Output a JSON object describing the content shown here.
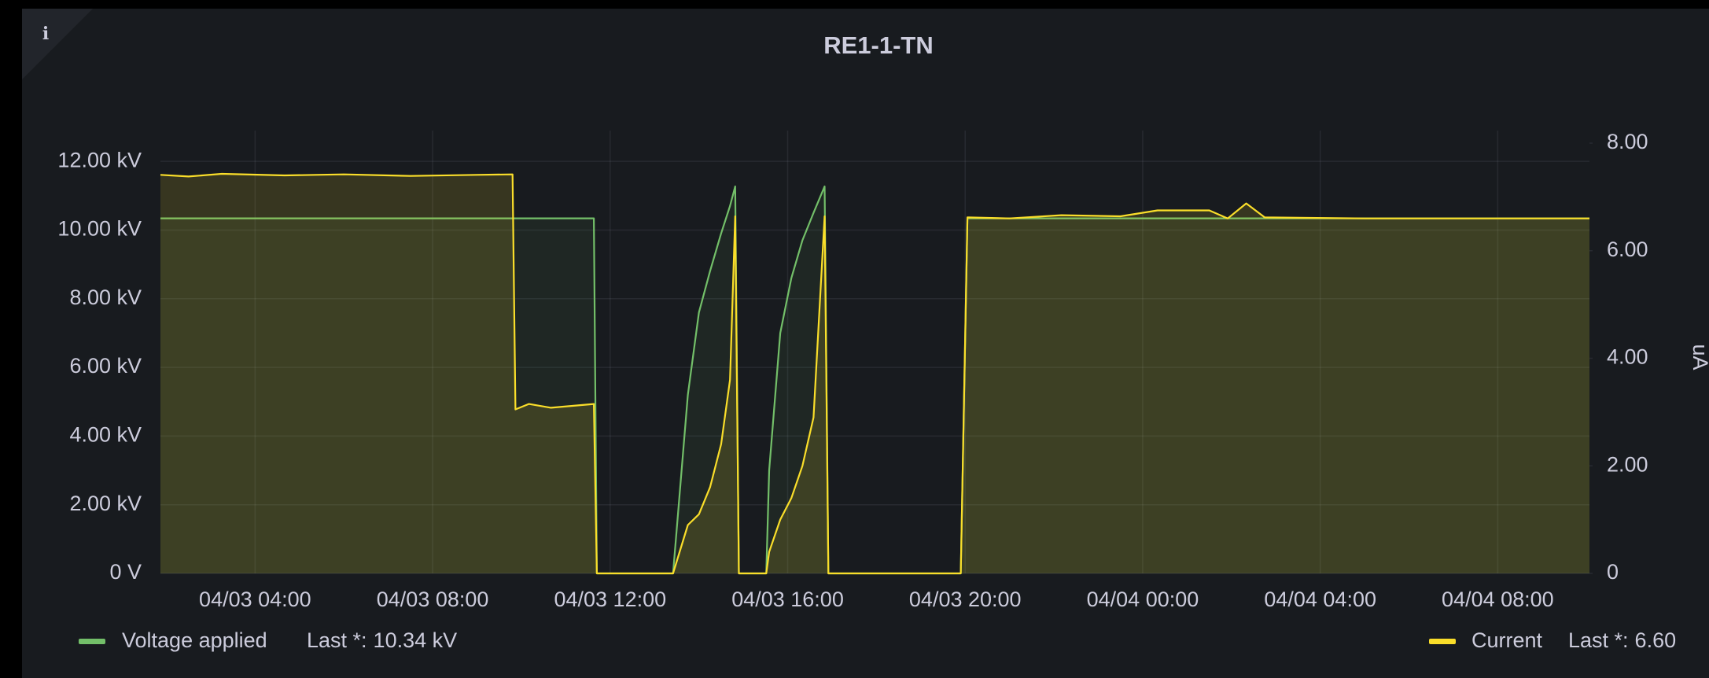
{
  "chart_data": {
    "type": "line",
    "title": "RE1-1-TN",
    "info_icon": "i",
    "x": [
      "04/03 01:52",
      "04/03 02:30",
      "04/03 03:15",
      "04/03 04:40",
      "04/03 06:00",
      "04/03 07:30",
      "04/03 09:00",
      "04/03 09:48",
      "04/03 09:52",
      "04/03 10:10",
      "04/03 10:40",
      "04/03 11:38",
      "04/03 11:42",
      "04/03 13:25",
      "04/03 13:45",
      "04/03 14:00",
      "04/03 14:15",
      "04/03 14:30",
      "04/03 14:42",
      "04/03 14:49",
      "04/03 14:54",
      "04/03 15:31",
      "04/03 15:35",
      "04/03 15:50",
      "04/03 16:05",
      "04/03 16:20",
      "04/03 16:35",
      "04/03 16:50",
      "04/03 16:55",
      "04/03 19:54",
      "04/03 20:03",
      "04/03 21:00",
      "04/03 22:10",
      "04/03 23:30",
      "04/04 00:20",
      "04/04 01:30",
      "04/04 01:55",
      "04/04 02:20",
      "04/04 02:45",
      "04/04 05:00",
      "04/04 10:04"
    ],
    "series": [
      {
        "name": "Voltage applied",
        "color": "#73bf69",
        "last": "10.34 kV",
        "values": [
          10.34,
          10.34,
          10.34,
          10.34,
          10.34,
          10.34,
          10.34,
          10.34,
          10.34,
          10.34,
          10.34,
          10.34,
          0,
          0,
          5.2,
          7.6,
          8.8,
          9.9,
          10.7,
          11.27,
          0,
          0,
          3.0,
          7.0,
          8.6,
          9.7,
          10.5,
          11.27,
          0,
          0,
          10.34,
          10.34,
          10.34,
          10.34,
          10.34,
          10.34,
          10.34,
          10.34,
          10.34,
          10.34,
          10.34
        ]
      },
      {
        "name": "Current",
        "color": "#fade2a",
        "axis": "y2",
        "last": "6.60",
        "values": [
          7.41,
          7.38,
          7.43,
          7.4,
          7.42,
          7.39,
          7.41,
          7.42,
          3.05,
          3.15,
          3.08,
          3.15,
          0,
          0,
          0.9,
          1.1,
          1.6,
          2.4,
          3.6,
          6.64,
          0,
          0,
          0.4,
          1.0,
          1.4,
          2.0,
          2.9,
          6.64,
          0,
          0,
          6.62,
          6.6,
          6.66,
          6.64,
          6.75,
          6.75,
          6.6,
          6.88,
          6.62,
          6.6,
          6.6
        ]
      }
    ],
    "legend_stat_label": "Last *:",
    "xlim": [
      "04/03 01:52",
      "04/04 10:04"
    ],
    "xticks": [
      "04/03 04:00",
      "04/03 08:00",
      "04/03 12:00",
      "04/03 16:00",
      "04/03 20:00",
      "04/04 00:00",
      "04/04 04:00",
      "04/04 08:00"
    ],
    "ylim": [
      0,
      12.53
    ],
    "yticks": [
      {
        "value": 0,
        "label": "0 V"
      },
      {
        "value": 2,
        "label": "2.00 kV"
      },
      {
        "value": 4,
        "label": "4.00 kV"
      },
      {
        "value": 6,
        "label": "6.00 kV"
      },
      {
        "value": 8,
        "label": "8.00 kV"
      },
      {
        "value": 10,
        "label": "10.00 kV"
      },
      {
        "value": 12,
        "label": "12.00 kV"
      }
    ],
    "y2label": "uA",
    "y2lim": [
      0,
      8
    ],
    "y2ticks": [
      0,
      {
        "value": 2,
        "label": "2.00"
      },
      {
        "value": 4,
        "label": "4.00"
      },
      {
        "value": 6,
        "label": "6.00"
      },
      {
        "value": 8,
        "label": "8.00"
      }
    ],
    "grid": true
  }
}
